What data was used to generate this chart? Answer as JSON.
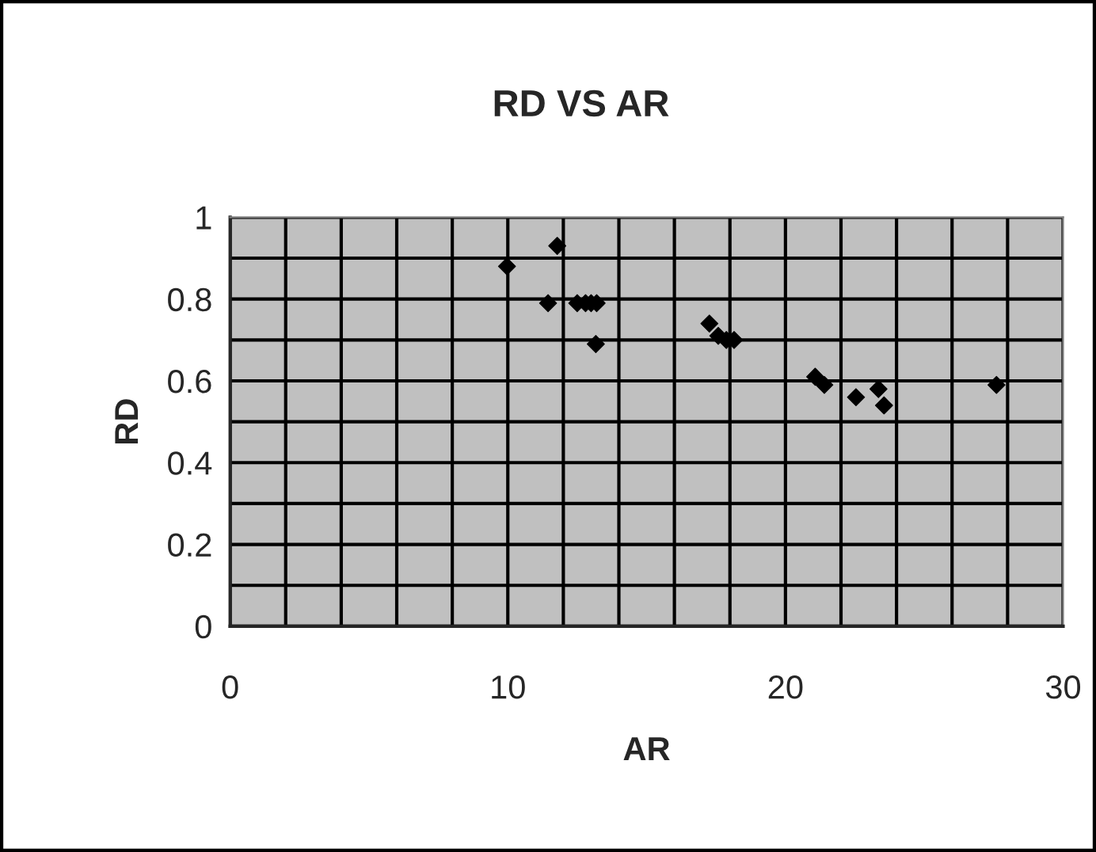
{
  "chart_data": {
    "type": "scatter",
    "title": "RD VS AR",
    "xlabel": "AR",
    "ylabel": "RD",
    "x": [
      9.97,
      11.78,
      11.45,
      12.5,
      12.8,
      13.0,
      13.2,
      13.17,
      17.26,
      17.58,
      17.87,
      18.15,
      21.07,
      21.4,
      22.54,
      23.35,
      23.55,
      27.6
    ],
    "series": [
      {
        "color": "#000000",
        "values": [
          0.88,
          0.93,
          0.79,
          0.79,
          0.79,
          0.79,
          0.79,
          0.69,
          0.74,
          0.71,
          0.7,
          0.7,
          0.61,
          0.59,
          0.56,
          0.58,
          0.54,
          0.59
        ]
      }
    ],
    "xlim": [
      0,
      30
    ],
    "ylim": [
      0,
      1
    ],
    "xticks": [
      0,
      10,
      20,
      30
    ],
    "yticks": [
      0,
      0.2,
      0.4,
      0.6,
      0.8,
      1
    ],
    "grid": true,
    "marker": "diamond",
    "legend": false
  }
}
